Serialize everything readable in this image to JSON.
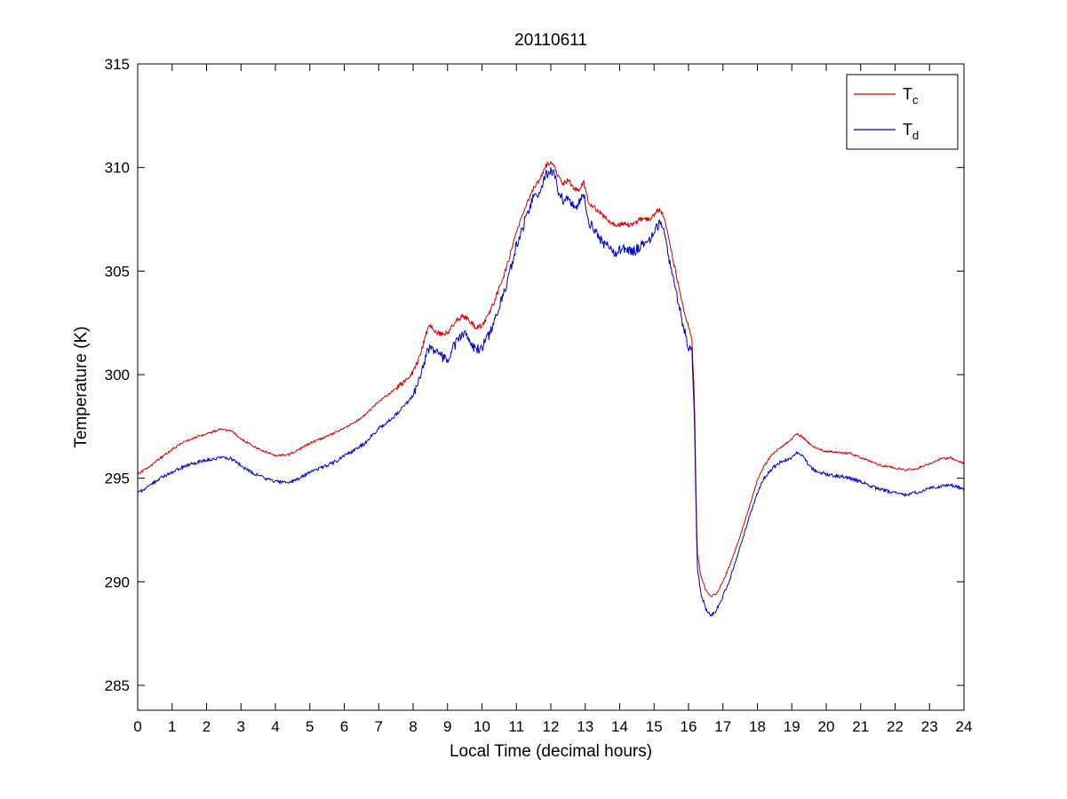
{
  "chart_data": {
    "type": "line",
    "title": "20110611",
    "xlabel": "Local Time (decimal hours)",
    "ylabel": "Temperature (K)",
    "xlim": [
      0,
      24
    ],
    "ylim": [
      283.8,
      315
    ],
    "xticks": [
      0,
      1,
      2,
      3,
      4,
      5,
      6,
      7,
      8,
      9,
      10,
      11,
      12,
      13,
      14,
      15,
      16,
      17,
      18,
      19,
      20,
      21,
      22,
      23,
      24
    ],
    "yticks": [
      285,
      290,
      295,
      300,
      305,
      310,
      315
    ],
    "grid": false,
    "legend_position": "top-right",
    "series": [
      {
        "name": "T_c",
        "label_base": "T",
        "label_sub": "c",
        "color": "#d40000",
        "noise": {
          "base": 0.05,
          "active": 0.12,
          "active_range": [
            7.5,
            16.1
          ]
        },
        "points": [
          [
            0,
            295.2
          ],
          [
            0.3,
            295.5
          ],
          [
            0.6,
            295.9
          ],
          [
            1,
            296.4
          ],
          [
            1.4,
            296.8
          ],
          [
            1.8,
            297.05
          ],
          [
            2.1,
            297.2
          ],
          [
            2.4,
            297.35
          ],
          [
            2.7,
            297.3
          ],
          [
            3,
            296.9
          ],
          [
            3.3,
            296.6
          ],
          [
            3.6,
            296.35
          ],
          [
            4,
            296.1
          ],
          [
            4.4,
            296.15
          ],
          [
            4.7,
            296.4
          ],
          [
            5,
            296.7
          ],
          [
            5.4,
            296.95
          ],
          [
            5.8,
            297.25
          ],
          [
            6,
            297.4
          ],
          [
            6.3,
            297.7
          ],
          [
            6.6,
            298.05
          ],
          [
            7,
            298.7
          ],
          [
            7.4,
            299.2
          ],
          [
            7.7,
            299.6
          ],
          [
            8,
            300.1
          ],
          [
            8.2,
            300.9
          ],
          [
            8.4,
            302.1
          ],
          [
            8.5,
            302.35
          ],
          [
            8.65,
            302.1
          ],
          [
            8.8,
            301.95
          ],
          [
            9,
            302.0
          ],
          [
            9.2,
            302.5
          ],
          [
            9.45,
            302.85
          ],
          [
            9.6,
            302.7
          ],
          [
            9.8,
            302.3
          ],
          [
            10,
            302.35
          ],
          [
            10.2,
            302.9
          ],
          [
            10.45,
            303.9
          ],
          [
            10.7,
            305.1
          ],
          [
            11,
            306.9
          ],
          [
            11.2,
            307.8
          ],
          [
            11.45,
            308.9
          ],
          [
            11.7,
            309.5
          ],
          [
            11.85,
            310.1
          ],
          [
            12,
            310.2
          ],
          [
            12.1,
            310.1
          ],
          [
            12.2,
            309.6
          ],
          [
            12.35,
            309.2
          ],
          [
            12.5,
            309.4
          ],
          [
            12.65,
            309.0
          ],
          [
            12.8,
            308.9
          ],
          [
            12.95,
            309.3
          ],
          [
            13.0,
            309.0
          ],
          [
            13.1,
            308.3
          ],
          [
            13.3,
            308.0
          ],
          [
            13.5,
            307.7
          ],
          [
            13.7,
            307.4
          ],
          [
            13.9,
            307.2
          ],
          [
            14.1,
            307.3
          ],
          [
            14.35,
            307.2
          ],
          [
            14.6,
            307.5
          ],
          [
            14.85,
            307.5
          ],
          [
            15.0,
            307.7
          ],
          [
            15.15,
            308.0
          ],
          [
            15.3,
            307.6
          ],
          [
            15.45,
            306.3
          ],
          [
            15.6,
            305.2
          ],
          [
            15.8,
            303.6
          ],
          [
            16.0,
            302.3
          ],
          [
            16.1,
            301.6
          ],
          [
            16.17,
            299.0
          ],
          [
            16.25,
            291.5
          ],
          [
            16.35,
            290.3
          ],
          [
            16.5,
            289.6
          ],
          [
            16.65,
            289.3
          ],
          [
            16.8,
            289.4
          ],
          [
            17,
            290.0
          ],
          [
            17.2,
            290.8
          ],
          [
            17.5,
            292.2
          ],
          [
            17.8,
            293.8
          ],
          [
            18,
            294.9
          ],
          [
            18.2,
            295.6
          ],
          [
            18.45,
            296.2
          ],
          [
            18.7,
            296.5
          ],
          [
            19,
            296.9
          ],
          [
            19.15,
            297.15
          ],
          [
            19.3,
            297.0
          ],
          [
            19.5,
            296.7
          ],
          [
            19.7,
            296.45
          ],
          [
            20,
            296.3
          ],
          [
            20.3,
            296.25
          ],
          [
            20.7,
            296.2
          ],
          [
            21,
            296.0
          ],
          [
            21.3,
            295.8
          ],
          [
            21.6,
            295.6
          ],
          [
            22,
            295.5
          ],
          [
            22.3,
            295.4
          ],
          [
            22.6,
            295.45
          ],
          [
            23,
            295.7
          ],
          [
            23.3,
            295.9
          ],
          [
            23.6,
            296.0
          ],
          [
            23.8,
            295.85
          ],
          [
            24,
            295.7
          ]
        ]
      },
      {
        "name": "T_d",
        "label_base": "T",
        "label_sub": "d",
        "color": "#0000c8",
        "noise": {
          "base": 0.08,
          "active": 0.25,
          "active_range": [
            8.0,
            16.1
          ]
        },
        "points": [
          [
            0,
            294.3
          ],
          [
            0.3,
            294.6
          ],
          [
            0.6,
            294.95
          ],
          [
            1,
            295.3
          ],
          [
            1.4,
            295.6
          ],
          [
            1.8,
            295.8
          ],
          [
            2.1,
            295.9
          ],
          [
            2.4,
            296.0
          ],
          [
            2.7,
            295.95
          ],
          [
            3,
            295.6
          ],
          [
            3.3,
            295.3
          ],
          [
            3.6,
            295.05
          ],
          [
            4,
            294.85
          ],
          [
            4.4,
            294.8
          ],
          [
            4.7,
            295.0
          ],
          [
            5,
            295.3
          ],
          [
            5.4,
            295.55
          ],
          [
            5.8,
            295.85
          ],
          [
            6,
            296.1
          ],
          [
            6.3,
            296.35
          ],
          [
            6.6,
            296.7
          ],
          [
            7,
            297.4
          ],
          [
            7.4,
            297.9
          ],
          [
            7.7,
            298.4
          ],
          [
            8,
            299.0
          ],
          [
            8.2,
            299.8
          ],
          [
            8.4,
            301.0
          ],
          [
            8.5,
            301.4
          ],
          [
            8.65,
            301.1
          ],
          [
            8.8,
            300.85
          ],
          [
            9,
            300.75
          ],
          [
            9.2,
            301.4
          ],
          [
            9.45,
            302.0
          ],
          [
            9.6,
            301.8
          ],
          [
            9.8,
            301.2
          ],
          [
            10,
            301.3
          ],
          [
            10.2,
            301.9
          ],
          [
            10.45,
            303.0
          ],
          [
            10.7,
            304.3
          ],
          [
            11,
            306.2
          ],
          [
            11.2,
            307.2
          ],
          [
            11.45,
            308.4
          ],
          [
            11.7,
            309.0
          ],
          [
            11.85,
            309.6
          ],
          [
            12,
            309.8
          ],
          [
            12.1,
            309.6
          ],
          [
            12.2,
            309.0
          ],
          [
            12.35,
            308.4
          ],
          [
            12.5,
            308.6
          ],
          [
            12.65,
            308.2
          ],
          [
            12.8,
            308.2
          ],
          [
            12.95,
            308.7
          ],
          [
            13.0,
            308.4
          ],
          [
            13.1,
            307.4
          ],
          [
            13.3,
            306.9
          ],
          [
            13.5,
            306.4
          ],
          [
            13.7,
            306.1
          ],
          [
            13.9,
            305.9
          ],
          [
            14.1,
            306.1
          ],
          [
            14.35,
            305.9
          ],
          [
            14.6,
            306.2
          ],
          [
            14.85,
            306.4
          ],
          [
            15.0,
            306.9
          ],
          [
            15.15,
            307.3
          ],
          [
            15.3,
            306.8
          ],
          [
            15.45,
            305.4
          ],
          [
            15.6,
            304.3
          ],
          [
            15.8,
            302.7
          ],
          [
            16.0,
            301.3
          ],
          [
            16.1,
            301.0
          ],
          [
            16.17,
            298.0
          ],
          [
            16.25,
            290.8
          ],
          [
            16.35,
            289.5
          ],
          [
            16.5,
            288.7
          ],
          [
            16.65,
            288.4
          ],
          [
            16.8,
            288.6
          ],
          [
            17,
            289.3
          ],
          [
            17.2,
            290.1
          ],
          [
            17.5,
            291.7
          ],
          [
            17.8,
            293.3
          ],
          [
            18,
            294.3
          ],
          [
            18.2,
            295.0
          ],
          [
            18.45,
            295.5
          ],
          [
            18.7,
            295.8
          ],
          [
            19,
            296.0
          ],
          [
            19.15,
            296.25
          ],
          [
            19.3,
            296.1
          ],
          [
            19.5,
            295.6
          ],
          [
            19.7,
            295.35
          ],
          [
            20,
            295.2
          ],
          [
            20.3,
            295.1
          ],
          [
            20.7,
            295.0
          ],
          [
            21,
            294.85
          ],
          [
            21.3,
            294.6
          ],
          [
            21.6,
            294.45
          ],
          [
            22,
            294.3
          ],
          [
            22.3,
            294.2
          ],
          [
            22.6,
            294.3
          ],
          [
            23,
            294.5
          ],
          [
            23.3,
            294.6
          ],
          [
            23.6,
            294.65
          ],
          [
            23.8,
            294.6
          ],
          [
            24,
            294.5
          ]
        ]
      }
    ]
  }
}
